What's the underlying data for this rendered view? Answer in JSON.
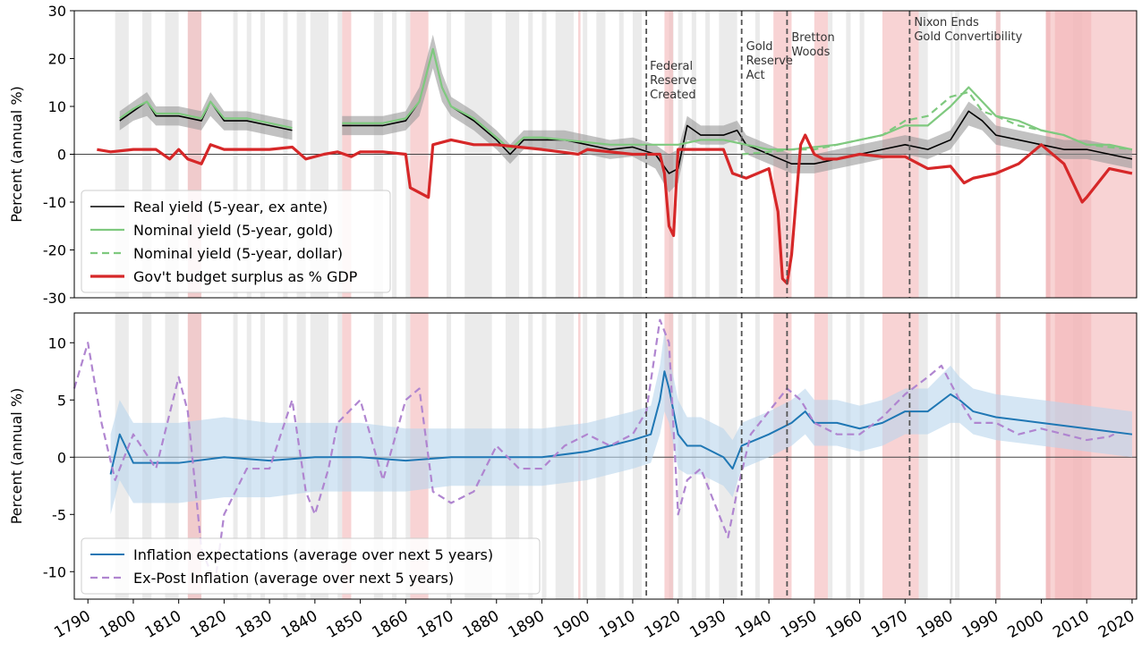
{
  "chart_data": [
    {
      "type": "line",
      "y_label": "Percent (annual %)",
      "xlim": [
        1787,
        2021
      ],
      "ylim": [
        -30,
        30
      ],
      "yticks": [
        -30,
        -20,
        -10,
        0,
        10,
        20,
        30
      ],
      "legend": "lower left",
      "series": [
        {
          "name": "Real yield (5-year, ex ante)",
          "color": "#000000",
          "style": "solid",
          "width": 1.6,
          "x": [
            1797,
            1800,
            1803,
            1805,
            1810,
            1815,
            1817,
            1820,
            1825,
            1830,
            1835,
            1840,
            1846,
            1850,
            1855,
            1860,
            1863,
            1866,
            1868,
            1870,
            1875,
            1880,
            1883,
            1886,
            1890,
            1895,
            1900,
            1905,
            1910,
            1915,
            1918,
            1920,
            1922,
            1925,
            1930,
            1933,
            1935,
            1940,
            1945,
            1950,
            1955,
            1960,
            1965,
            1970,
            1975,
            1980,
            1984,
            1987,
            1990,
            1995,
            2000,
            2005,
            2010,
            2015,
            2020
          ],
          "values": [
            7,
            9,
            11,
            8,
            8,
            7,
            11,
            7,
            7,
            6,
            5,
            null,
            6,
            6,
            6,
            7,
            11,
            22,
            14,
            10,
            7,
            3,
            0,
            3,
            3,
            3,
            2,
            1,
            1.5,
            0,
            -4,
            -3,
            6,
            4,
            4,
            5,
            2,
            0,
            -2,
            -2,
            -1,
            0,
            1,
            2,
            1,
            3,
            9,
            7,
            4,
            3,
            2,
            1,
            1,
            0,
            -1
          ],
          "band_color": "#999999",
          "band_lower": [
            5,
            7,
            8,
            6,
            6,
            5,
            8,
            5,
            5,
            4,
            3,
            null,
            4,
            4,
            4,
            5,
            8,
            18,
            11,
            8,
            5,
            1,
            -2,
            1,
            1,
            1,
            0,
            -1,
            -0.5,
            -3,
            -8,
            -6,
            3,
            2,
            2,
            3,
            0,
            -2,
            -4,
            -4,
            -3,
            -2,
            -1,
            0,
            -1,
            1,
            6,
            5,
            2,
            1,
            0,
            -1,
            -1,
            -2,
            -3
          ],
          "band_upper": [
            9,
            11,
            13,
            10,
            10,
            9,
            13,
            9,
            9,
            8,
            7,
            null,
            8,
            8,
            8,
            9,
            14,
            25,
            17,
            12,
            9,
            5,
            2,
            5,
            5,
            5,
            4,
            3,
            3.5,
            2,
            0,
            1,
            8,
            6,
            6,
            7,
            4,
            2,
            0,
            0,
            1,
            2,
            3,
            4,
            3,
            5,
            11,
            9,
            6,
            5,
            4,
            3,
            3,
            2,
            1
          ]
        },
        {
          "name": "Nominal yield (5-year, gold)",
          "color": "#7fc97f",
          "style": "solid",
          "width": 2.2,
          "x": [
            1797,
            1800,
            1803,
            1805,
            1810,
            1815,
            1817,
            1820,
            1825,
            1830,
            1835,
            1840,
            1846,
            1850,
            1855,
            1860,
            1863,
            1866,
            1868,
            1870,
            1875,
            1880,
            1883,
            1886,
            1890,
            1895,
            1900,
            1905,
            1910,
            1915,
            1920,
            1925,
            1930,
            1935,
            1940,
            1945,
            1950,
            1955,
            1960,
            1965,
            1970,
            1975,
            1980,
            1984,
            1987,
            1990,
            1995,
            2000,
            2005,
            2010,
            2015,
            2020
          ],
          "values": [
            7.5,
            9.5,
            11,
            8.5,
            8.5,
            7.5,
            11,
            7.5,
            7.5,
            6.5,
            5.5,
            null,
            6.5,
            6.5,
            6.5,
            7.5,
            11,
            22,
            14,
            10,
            7.5,
            3.5,
            1,
            3.5,
            3.5,
            3,
            2.5,
            2,
            2,
            2,
            2,
            3,
            3,
            2,
            1,
            1,
            1.5,
            2,
            3,
            4,
            6,
            6,
            10,
            14,
            11,
            8,
            7,
            5,
            4,
            2,
            2,
            1
          ]
        },
        {
          "name": "Nominal yield (5-year, dollar)",
          "color": "#7fc97f",
          "style": "dashed",
          "width": 2.2,
          "x": [
            1934,
            1940,
            1945,
            1950,
            1955,
            1960,
            1965,
            1970,
            1975,
            1980,
            1984,
            1987,
            1990,
            1995,
            2000,
            2005,
            2010,
            2015,
            2020
          ],
          "values": [
            0,
            0.5,
            1,
            1,
            2,
            3,
            4,
            7,
            8,
            12,
            13,
            9,
            8,
            6,
            5,
            4,
            2,
            1.5,
            1
          ]
        },
        {
          "name": "Gov't budget surplus as % GDP",
          "color": "#d62728",
          "style": "solid",
          "width": 3.2,
          "x": [
            1792,
            1795,
            1800,
            1805,
            1808,
            1810,
            1812,
            1815,
            1817,
            1820,
            1825,
            1830,
            1835,
            1838,
            1842,
            1845,
            1848,
            1850,
            1855,
            1860,
            1861,
            1863,
            1865,
            1866,
            1870,
            1875,
            1880,
            1890,
            1898,
            1900,
            1910,
            1916,
            1917,
            1918,
            1919,
            1920,
            1925,
            1930,
            1932,
            1935,
            1940,
            1942,
            1943,
            1944,
            1945,
            1947,
            1948,
            1950,
            1952,
            1955,
            1960,
            1965,
            1970,
            1975,
            1980,
            1983,
            1985,
            1990,
            1995,
            2000,
            2005,
            2009,
            2010,
            2015,
            2020
          ],
          "values": [
            1,
            0.5,
            1,
            1,
            -1,
            1,
            -1,
            -2,
            2,
            1,
            1,
            1,
            1.5,
            -1,
            0,
            0.5,
            -0.5,
            0.5,
            0.5,
            0,
            -7,
            -8,
            -9,
            2,
            3,
            2,
            2,
            1,
            0,
            1,
            0,
            0,
            -4,
            -15,
            -17,
            1,
            1,
            1,
            -4,
            -5,
            -3,
            -12,
            -26,
            -27,
            -21,
            2,
            4,
            0,
            -1,
            -1,
            0,
            -0.5,
            -0.5,
            -3,
            -2.5,
            -6,
            -5,
            -4,
            -2,
            2,
            -2,
            -10,
            -9,
            -3,
            -4
          ]
        }
      ],
      "shaded_periods": [
        {
          "color": "#dddddd",
          "spans": [
            [
              1796,
              1799
            ],
            [
              1802,
              1804
            ],
            [
              1807,
              1810
            ],
            [
              1812,
              1815
            ],
            [
              1822,
              1823
            ],
            [
              1825,
              1826
            ],
            [
              1828,
              1829
            ],
            [
              1833,
              1834
            ],
            [
              1836,
              1838
            ],
            [
              1839,
              1843
            ],
            [
              1845,
              1846
            ],
            [
              1853,
              1855
            ],
            [
              1857,
              1858
            ],
            [
              1860,
              1861
            ],
            [
              1869,
              1870
            ],
            [
              1873,
              1879
            ],
            [
              1882,
              1885
            ],
            [
              1887,
              1888
            ],
            [
              1890,
              1891
            ],
            [
              1893,
              1897
            ],
            [
              1899,
              1900
            ],
            [
              1902,
              1904
            ],
            [
              1907,
              1908
            ],
            [
              1910,
              1912
            ],
            [
              1918,
              1919
            ],
            [
              1920,
              1921
            ],
            [
              1923,
              1924
            ],
            [
              1926,
              1927
            ],
            [
              1929,
              1933
            ],
            [
              1937,
              1938
            ],
            [
              1953,
              1954
            ],
            [
              1957,
              1958
            ],
            [
              1960,
              1961
            ],
            [
              1973,
              1975
            ],
            [
              1980,
              1980.5
            ],
            [
              1981,
              1982
            ],
            [
              1990,
              1991
            ],
            [
              2001,
              2002
            ],
            [
              2007,
              2009
            ]
          ]
        },
        {
          "color": "#f4b6b8",
          "spans": [
            [
              1812,
              1815
            ],
            [
              1846,
              1848
            ],
            [
              1861,
              1865
            ],
            [
              1898,
              1898.5
            ],
            [
              1917,
              1918.9
            ],
            [
              1941,
              1945
            ],
            [
              1950,
              1953
            ],
            [
              1965,
              1973
            ],
            [
              1990,
              1991
            ],
            [
              2001,
              2002
            ],
            [
              2003,
              2011
            ],
            [
              2001,
              2021
            ]
          ]
        }
      ],
      "annotations": [
        {
          "x": 1913,
          "lines": [
            "Federal",
            "Reserve",
            "Created"
          ]
        },
        {
          "x": 1934,
          "lines": [
            "Gold",
            "Reserve",
            "Act"
          ]
        },
        {
          "x": 1944,
          "lines": [
            "Bretton",
            "Woods"
          ]
        },
        {
          "x": 1971,
          "lines": [
            "Nixon Ends",
            "Gold Convertibility"
          ]
        }
      ]
    },
    {
      "type": "line",
      "y_label": "Percent (annual %)",
      "xlim": [
        1787,
        2021
      ],
      "ylim": [
        -12.4,
        12.6
      ],
      "yticks": [
        -10,
        -5,
        0,
        5,
        10
      ],
      "xticks": [
        1790,
        1800,
        1810,
        1820,
        1830,
        1840,
        1850,
        1860,
        1870,
        1880,
        1890,
        1900,
        1910,
        1920,
        1930,
        1940,
        1950,
        1960,
        1970,
        1980,
        1990,
        2000,
        2010,
        2020
      ],
      "legend": "lower left",
      "series": [
        {
          "name": "Inflation expectations (average over next 5 years)",
          "color": "#1f77b4",
          "style": "solid",
          "width": 2,
          "x": [
            1795,
            1797,
            1800,
            1810,
            1820,
            1830,
            1840,
            1850,
            1860,
            1870,
            1880,
            1890,
            1900,
            1905,
            1910,
            1914,
            1916,
            1917,
            1918,
            1920,
            1922,
            1925,
            1930,
            1932,
            1934,
            1940,
            1945,
            1948,
            1950,
            1955,
            1960,
            1965,
            1970,
            1975,
            1980,
            1982,
            1985,
            1990,
            2000,
            2010,
            2020
          ],
          "values": [
            -1.5,
            2,
            -0.5,
            -0.5,
            0,
            -0.3,
            0,
            0,
            -0.3,
            0,
            0,
            0,
            0.5,
            1,
            1.5,
            2,
            5,
            7.5,
            6,
            2,
            1,
            1,
            0,
            -1,
            1,
            2,
            3,
            4,
            3,
            3,
            2.5,
            3,
            4,
            4,
            5.5,
            5,
            4,
            3.5,
            3,
            2.5,
            2
          ],
          "band_color": "#b9d5ec",
          "band_lower": [
            -5,
            -2,
            -4,
            -4,
            -3.5,
            -3.5,
            -3,
            -3,
            -3,
            -2.5,
            -2.5,
            -2.5,
            -2,
            -1.5,
            -1,
            -0.5,
            2,
            4,
            3,
            -1,
            -1.5,
            -1.5,
            -2.5,
            -3.5,
            -1,
            0,
            1,
            2,
            1,
            1,
            0.5,
            1,
            2,
            2,
            3,
            3,
            2,
            1.5,
            1,
            0.5,
            0
          ],
          "band_upper": [
            2,
            5,
            3,
            3,
            3.5,
            3,
            3,
            3,
            2.5,
            2.5,
            2.5,
            2.5,
            3,
            3.5,
            4,
            4.5,
            8,
            11,
            9,
            5,
            3.5,
            3.5,
            2.5,
            1.5,
            3,
            4,
            5,
            6,
            5,
            5,
            4.5,
            5,
            6,
            6,
            8,
            7,
            6,
            5.5,
            5,
            4.5,
            4
          ]
        },
        {
          "name": "Ex-Post Inflation (average over next 5 years)",
          "color": "#b085d0",
          "style": "dashed",
          "width": 2.2,
          "x": [
            1787,
            1790,
            1793,
            1796,
            1800,
            1805,
            1810,
            1812,
            1815,
            1818,
            1820,
            1825,
            1830,
            1835,
            1838,
            1840,
            1843,
            1845,
            1850,
            1855,
            1860,
            1863,
            1866,
            1870,
            1875,
            1880,
            1885,
            1890,
            1895,
            1900,
            1905,
            1910,
            1913,
            1916,
            1918,
            1920,
            1922,
            1925,
            1928,
            1931,
            1933,
            1936,
            1940,
            1944,
            1947,
            1950,
            1955,
            1960,
            1965,
            1970,
            1975,
            1978,
            1982,
            1985,
            1990,
            1995,
            2000,
            2005,
            2010,
            2015,
            2016
          ],
          "values": [
            6,
            10,
            3,
            -2,
            2,
            -1,
            7,
            4,
            -8,
            -11,
            -5,
            -1,
            -1,
            5,
            -3,
            -5,
            -1,
            3,
            5,
            -2,
            5,
            6,
            -3,
            -4,
            -3,
            1,
            -1,
            -1,
            1,
            2,
            1,
            2,
            4,
            12,
            10,
            -5,
            -2,
            -1,
            -4,
            -7,
            -3,
            2,
            4,
            6,
            5,
            3,
            2,
            2,
            3.5,
            5.5,
            7,
            8,
            5,
            3,
            3,
            2,
            2.5,
            2,
            1.5,
            1.8,
            2
          ]
        }
      ]
    }
  ]
}
